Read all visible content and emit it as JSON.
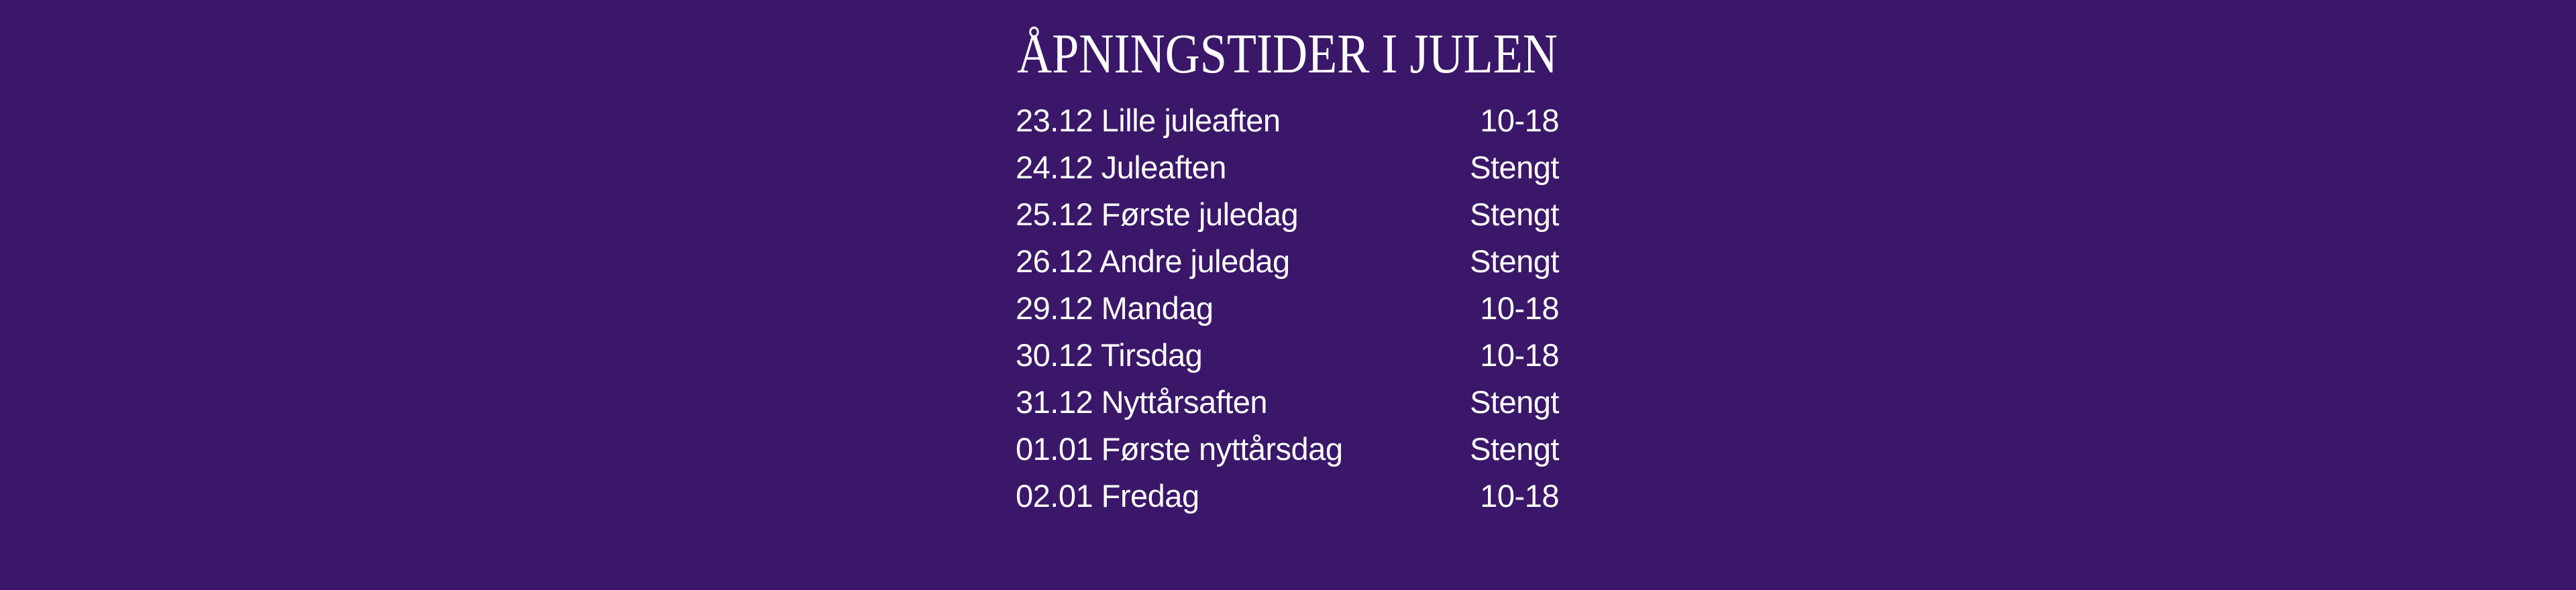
{
  "background_color": "#3a1768",
  "text_color": "#ffffff",
  "title": "ÅPNINGSTIDER I JULEN",
  "rows": [
    {
      "label": "23.12 Lille juleaften",
      "hours": "10-18"
    },
    {
      "label": "24.12 Juleaften",
      "hours": "Stengt"
    },
    {
      "label": "25.12 Første juledag",
      "hours": "Stengt"
    },
    {
      "label": "26.12 Andre juledag",
      "hours": "Stengt"
    },
    {
      "label": "29.12 Mandag",
      "hours": "10-18"
    },
    {
      "label": "30.12 Tirsdag",
      "hours": "10-18"
    },
    {
      "label": "31.12 Nyttårsaften",
      "hours": "Stengt"
    },
    {
      "label": "01.01 Første nyttårsdag",
      "hours": "Stengt"
    },
    {
      "label": "02.01 Fredag",
      "hours": "10-18"
    }
  ]
}
